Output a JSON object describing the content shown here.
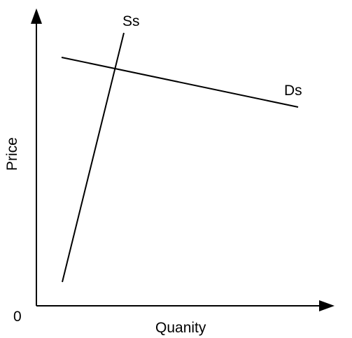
{
  "diagram": {
    "axes": {
      "y_label": "Price",
      "x_label": "Quanity",
      "origin_label": "0"
    },
    "curves": {
      "supply_label": "Ss",
      "demand_label": "Ds"
    },
    "colors": {
      "line": "#000000",
      "background": "#ffffff"
    }
  }
}
